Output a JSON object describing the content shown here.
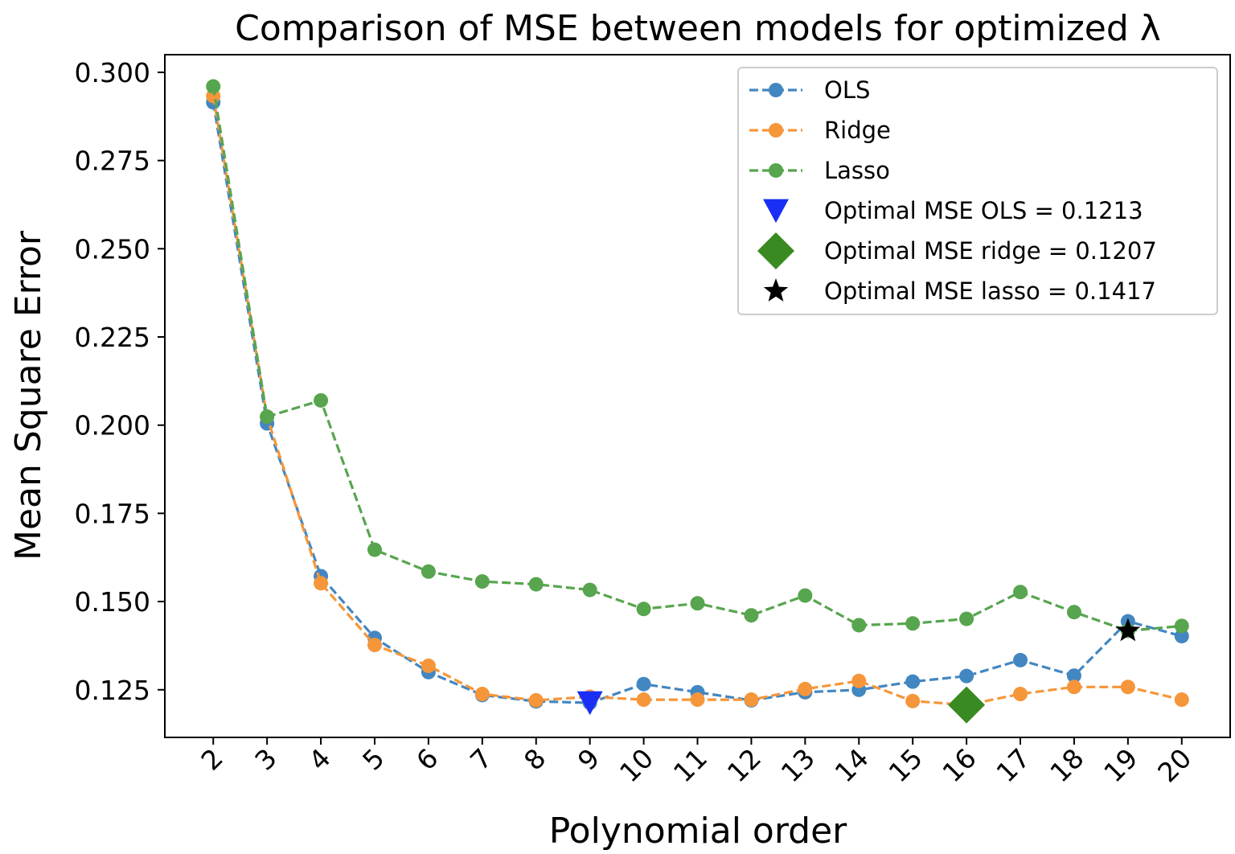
{
  "chart_data": {
    "type": "line",
    "title": "Comparison of MSE between models for optimized λ",
    "xlabel": "Polynomial order",
    "ylabel": "Mean Square Error",
    "x": [
      2,
      3,
      4,
      5,
      6,
      7,
      8,
      9,
      10,
      11,
      12,
      13,
      14,
      15,
      16,
      17,
      18,
      19,
      20
    ],
    "xticks": [
      "2",
      "3",
      "4",
      "5",
      "6",
      "7",
      "8",
      "9",
      "10",
      "11",
      "12",
      "13",
      "14",
      "15",
      "16",
      "17",
      "18",
      "19",
      "20"
    ],
    "yticks": [
      "0.125",
      "0.150",
      "0.175",
      "0.200",
      "0.225",
      "0.250",
      "0.275",
      "0.300"
    ],
    "ylim": [
      0.1115,
      0.305
    ],
    "xlim": [
      1.1,
      20.9
    ],
    "grid": false,
    "legend_position": "top-right",
    "series": [
      {
        "name": "OLS",
        "color": "#4287c1",
        "style": "dashed",
        "marker": "circle",
        "values": [
          0.2915,
          0.2005,
          0.1572,
          0.1397,
          0.13,
          0.1235,
          0.1217,
          0.1213,
          0.1266,
          0.1243,
          0.122,
          0.1243,
          0.125,
          0.1273,
          0.1289,
          0.1334,
          0.129,
          0.1444,
          0.1402
        ]
      },
      {
        "name": "Ridge",
        "color": "#f5963a",
        "style": "dashed",
        "marker": "circle",
        "values": [
          0.2933,
          0.2024,
          0.1552,
          0.1377,
          0.1318,
          0.1238,
          0.122,
          0.123,
          0.1222,
          0.1222,
          0.1222,
          0.1252,
          0.1275,
          0.1218,
          0.1207,
          0.1238,
          0.1258,
          0.1258,
          0.1222
        ]
      },
      {
        "name": "Lasso",
        "color": "#57a54e",
        "style": "dashed",
        "marker": "circle",
        "values": [
          0.296,
          0.2024,
          0.207,
          0.1647,
          0.1585,
          0.1557,
          0.1549,
          0.1533,
          0.1479,
          0.1495,
          0.1461,
          0.1517,
          0.1433,
          0.1438,
          0.1451,
          0.1527,
          0.147,
          0.1417,
          0.1431
        ]
      }
    ],
    "optima": [
      {
        "name": "Optimal MSE OLS = 0.1213",
        "x": 9,
        "y": 0.1213,
        "marker": "triangle-down",
        "color": "#1a2ff5"
      },
      {
        "name": "Optimal MSE ridge = 0.1207",
        "x": 16,
        "y": 0.1207,
        "marker": "diamond",
        "color": "#3a8a22"
      },
      {
        "name": "Optimal MSE lasso = 0.1417",
        "x": 19,
        "y": 0.1417,
        "marker": "star",
        "color": "#000000"
      }
    ]
  }
}
